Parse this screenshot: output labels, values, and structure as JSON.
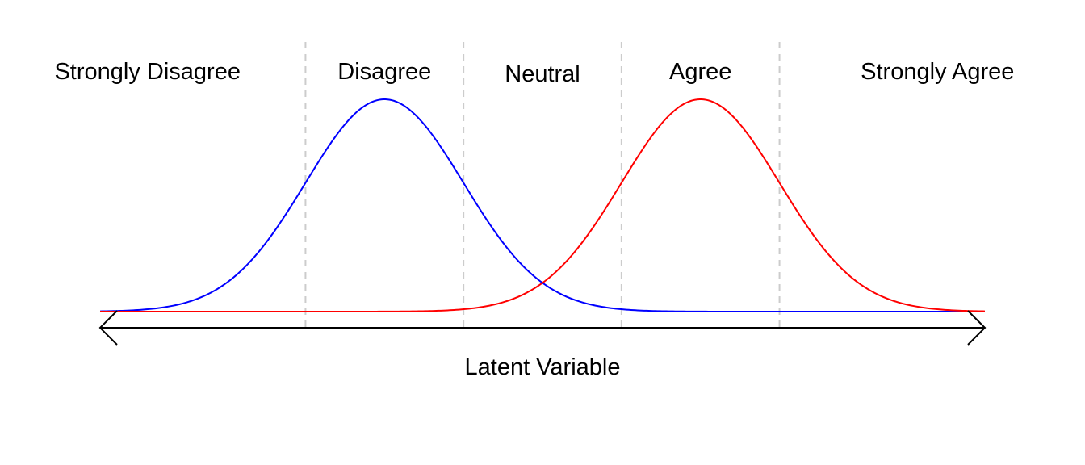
{
  "chart_data": {
    "type": "line",
    "title": "",
    "xlabel": "Latent Variable",
    "ylabel": "",
    "xlim": [
      -3.5,
      3.5
    ],
    "ylim": [
      0,
      1
    ],
    "grid": false,
    "thresholds": [
      -1.875,
      -0.625,
      0.625,
      1.875
    ],
    "categories": [
      "Strongly Disagree",
      "Disagree",
      "Neutral",
      "Agree",
      "Strongly Agree"
    ],
    "series": [
      {
        "color": "#0000ff",
        "mean": -1.25,
        "sd": 0.625
      },
      {
        "color": "#ff0000",
        "mean": 1.25,
        "sd": 0.625
      }
    ],
    "threshold_color": "#cccccc",
    "axis_arrows": "both"
  }
}
